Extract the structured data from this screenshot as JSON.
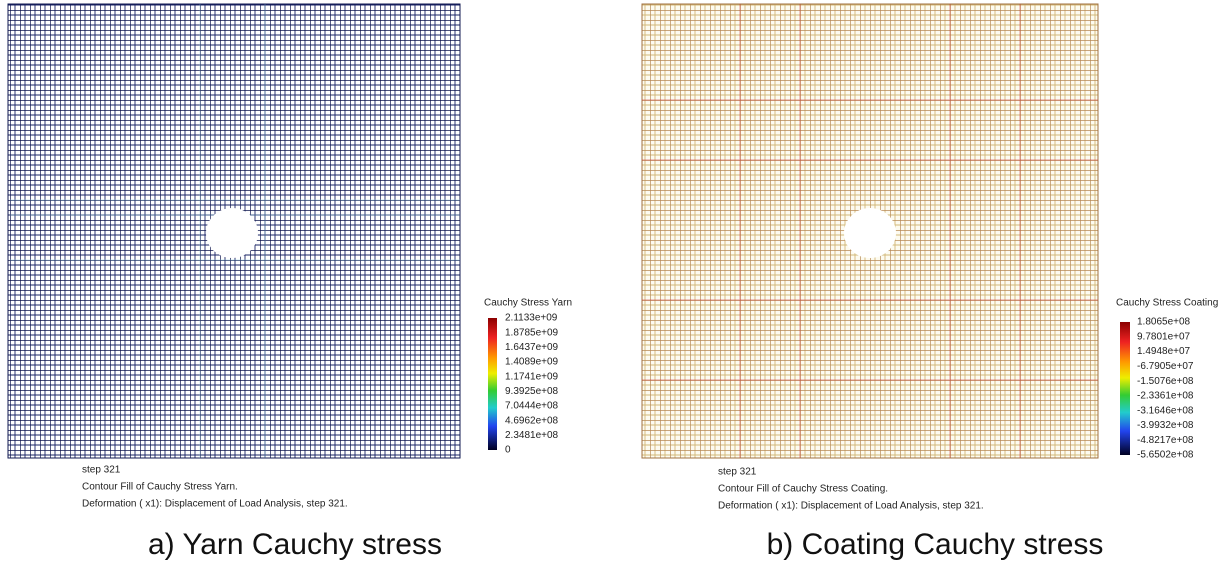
{
  "panels": [
    {
      "legend_title": "Cauchy Stress Yarn",
      "legend_labels": [
        "2.1133e+09",
        "1.8785e+09",
        "1.6437e+09",
        "1.4089e+09",
        "1.1741e+09",
        "9.3925e+08",
        "7.0444e+08",
        "4.6962e+08",
        "2.3481e+08",
        "0"
      ],
      "caption_lines": [
        "step 321",
        "Contour Fill of Cauchy Stress Yarn.",
        "Deformation ( x1): Displacement of Load Analysis, step 321."
      ],
      "label": "a) Yarn Cauchy stress"
    },
    {
      "legend_title": "Cauchy Stress Coating",
      "legend_labels": [
        "1.8065e+08",
        "9.7801e+07",
        "1.4948e+07",
        "-6.7905e+07",
        "-1.5076e+08",
        "-2.3361e+08",
        "-3.1646e+08",
        "-3.9932e+08",
        "-4.8217e+08",
        "-5.6502e+08"
      ],
      "caption_lines": [
        "step 321",
        "Contour Fill of Cauchy Stress Coating.",
        "Deformation ( x1): Displacement of Load Analysis, step 321."
      ],
      "label": "b) Coating Cauchy stress"
    }
  ]
}
